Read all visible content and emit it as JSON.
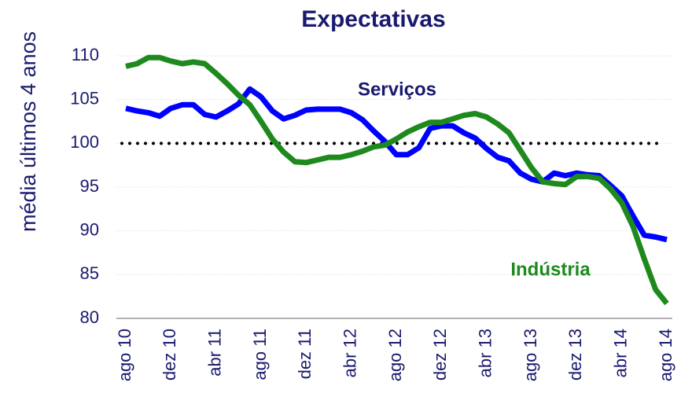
{
  "chart_data": {
    "type": "line",
    "title": "Expectativas",
    "y_label": "média últimos 4 anos",
    "categories": [
      "ago 10",
      null,
      null,
      null,
      "dez 10",
      null,
      null,
      null,
      "abr 11",
      null,
      null,
      null,
      "ago 11",
      null,
      null,
      null,
      "dez 11",
      null,
      null,
      null,
      "abr 12",
      null,
      null,
      null,
      "ago 12",
      null,
      null,
      null,
      "dez 12",
      null,
      null,
      null,
      "abr 13",
      null,
      null,
      null,
      "ago 13",
      null,
      null,
      null,
      "dez 13",
      null,
      null,
      null,
      "abr 14",
      null,
      null,
      null,
      "ago 14"
    ],
    "series": [
      {
        "name": "Serviços",
        "color": "#0000ff",
        "values": [
          104,
          103.7,
          103.5,
          103.1,
          104,
          104.4,
          104.4,
          103.3,
          103,
          103.7,
          104.5,
          106.2,
          105.3,
          103.7,
          102.8,
          103.2,
          103.8,
          103.9,
          103.9,
          103.9,
          103.5,
          102.7,
          101.4,
          100.2,
          98.7,
          98.7,
          99.5,
          101.7,
          102,
          102,
          101.2,
          100.6,
          99.4,
          98.4,
          98,
          96.6,
          95.9,
          95.6,
          96.6,
          96.3,
          96.6,
          96.4,
          96.3,
          95.2,
          94,
          91.7,
          89.5,
          89.3,
          89
        ]
      },
      {
        "name": "Indústria",
        "color": "#1e8a1e",
        "values": [
          108.8,
          109.1,
          109.8,
          109.8,
          109.4,
          109.1,
          109.3,
          109.1,
          108,
          106.8,
          105.5,
          104.4,
          102.5,
          100.5,
          99,
          97.9,
          97.8,
          98.1,
          98.4,
          98.4,
          98.7,
          99.1,
          99.6,
          99.8,
          100.5,
          101.3,
          101.9,
          102.4,
          102.4,
          102.8,
          103.2,
          103.4,
          103,
          102.2,
          101.2,
          99.2,
          97.2,
          95.6,
          95.4,
          95.3,
          96.2,
          96.2,
          96,
          94.8,
          93.2,
          90.5,
          86.8,
          83.3,
          81.7
        ]
      }
    ],
    "reference_line": 100,
    "ylim": [
      80,
      110
    ],
    "yticks": [
      80,
      85,
      90,
      95,
      100,
      105,
      110
    ],
    "grid": true
  }
}
